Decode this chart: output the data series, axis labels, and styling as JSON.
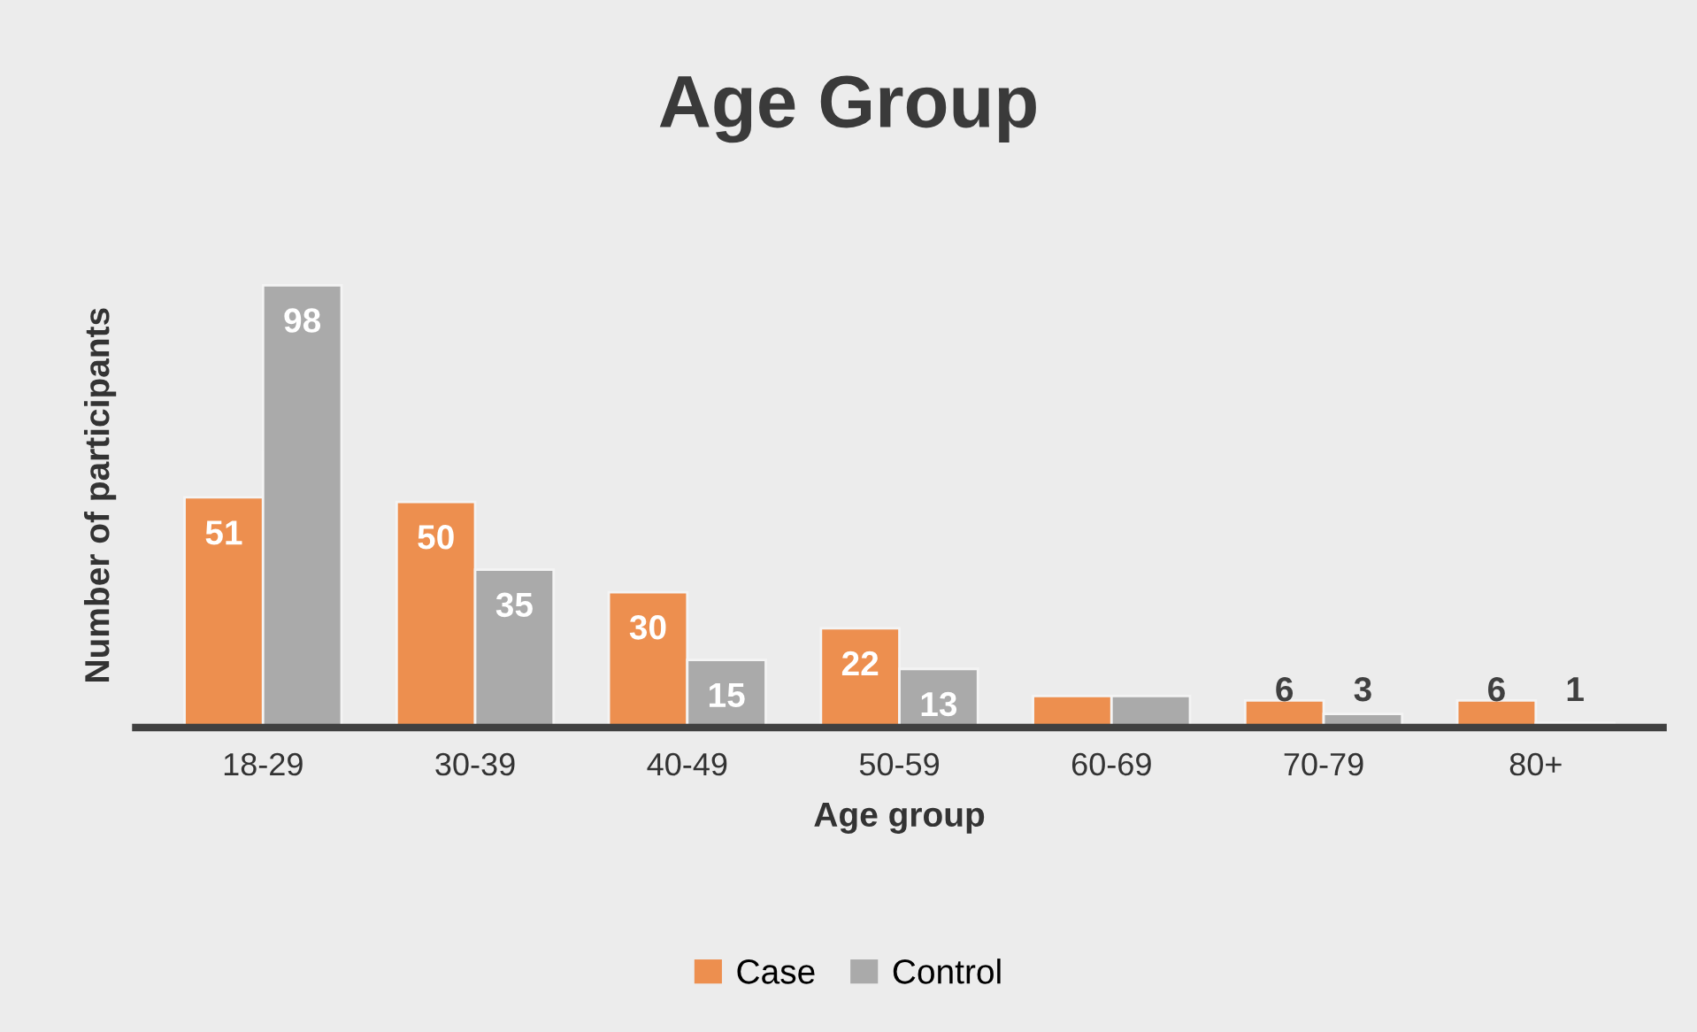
{
  "chart_data": {
    "type": "bar",
    "title": "Age Group",
    "xlabel": "Age group",
    "ylabel": "Number of participants",
    "categories": [
      "18-29",
      "30-39",
      "40-49",
      "50-59",
      "60-69",
      "70-79",
      "80+"
    ],
    "series": [
      {
        "name": "Case",
        "color": "#ed8f4f",
        "values": [
          51,
          50,
          30,
          22,
          7,
          6,
          6
        ],
        "value_labels": [
          "51",
          "50",
          "30",
          "22",
          null,
          "6",
          "6"
        ]
      },
      {
        "name": "Control",
        "color": "#aaaaaa",
        "values": [
          98,
          35,
          15,
          13,
          7,
          3,
          1
        ],
        "value_labels": [
          "98",
          "35",
          "15",
          "13",
          null,
          "3",
          "1"
        ]
      }
    ],
    "legend": "bottom",
    "grid": false
  }
}
